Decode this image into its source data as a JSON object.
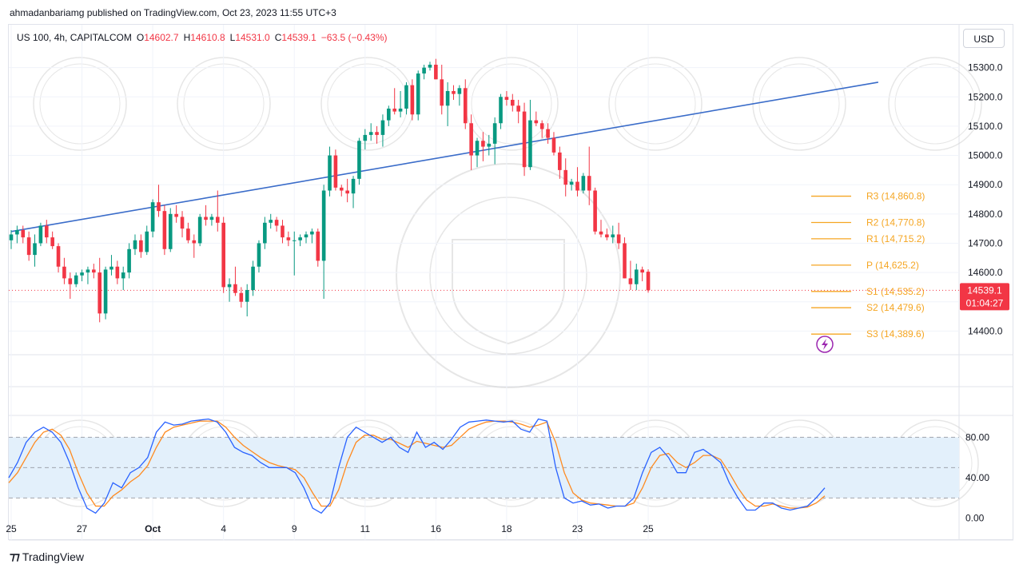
{
  "header": {
    "published_line": "ahmadanbariamg published on TradingView.com, Oct 23, 2023 11:55 UTC+3"
  },
  "legend": {
    "symbol": "US 100, 4h, CAPITALCOM",
    "open_label": "O",
    "open": "14602.7",
    "high_label": "H",
    "high": "14610.8",
    "low_label": "L",
    "low": "14531.0",
    "close_label": "C",
    "close": "14539.1",
    "change": "−63.5 (−0.43%)"
  },
  "currency_button": "USD",
  "brand": "TradingView",
  "colors": {
    "up": "#089981",
    "down": "#f23645",
    "trendline": "#3a6cc9",
    "pivot": "#f5a623",
    "stoch_k": "#2962ff",
    "stoch_d": "#ff8a1f",
    "band_fill": "#e3f0fb",
    "watermark": "#d3d3d3"
  },
  "chart_data": [
    {
      "type": "candlestick",
      "ylim": [
        14330,
        15340
      ],
      "y_ticks": [
        14400,
        14500,
        14600,
        14700,
        14800,
        14900,
        15000,
        15100,
        15200,
        15300
      ],
      "y_tick_labels": [
        "14400.0",
        "14500.0",
        "14600.0",
        "14700.0",
        "14800.0",
        "14900.0",
        "15000.0",
        "15100.0",
        "15200.0",
        "15300.0"
      ],
      "x_ticks": [
        0,
        12,
        24,
        36,
        48,
        60,
        72,
        84,
        96,
        108
      ],
      "x_tick_labels": [
        "25",
        "27",
        "Oct",
        "4",
        "9",
        "11",
        "16",
        "18",
        "23",
        "25"
      ],
      "candles": [
        [
          14710,
          14745,
          14680,
          14730
        ],
        [
          14730,
          14760,
          14700,
          14745
        ],
        [
          14745,
          14760,
          14700,
          14720
        ],
        [
          14720,
          14740,
          14640,
          14660
        ],
        [
          14660,
          14730,
          14620,
          14700
        ],
        [
          14700,
          14770,
          14690,
          14760
        ],
        [
          14760,
          14780,
          14700,
          14720
        ],
        [
          14720,
          14740,
          14680,
          14690
        ],
        [
          14690,
          14700,
          14600,
          14620
        ],
        [
          14620,
          14650,
          14560,
          14580
        ],
        [
          14580,
          14600,
          14510,
          14560
        ],
        [
          14560,
          14600,
          14550,
          14590
        ],
        [
          14590,
          14610,
          14570,
          14600
        ],
        [
          14600,
          14620,
          14560,
          14610
        ],
        [
          14610,
          14630,
          14580,
          14600
        ],
        [
          14600,
          14650,
          14430,
          14460
        ],
        [
          14460,
          14620,
          14440,
          14610
        ],
        [
          14610,
          14660,
          14590,
          14620
        ],
        [
          14620,
          14640,
          14560,
          14580
        ],
        [
          14580,
          14620,
          14540,
          14600
        ],
        [
          14600,
          14700,
          14580,
          14680
        ],
        [
          14680,
          14730,
          14660,
          14710
        ],
        [
          14710,
          14730,
          14650,
          14670
        ],
        [
          14670,
          14760,
          14660,
          14740
        ],
        [
          14740,
          14850,
          14720,
          14840
        ],
        [
          14840,
          14900,
          14790,
          14810
        ],
        [
          14810,
          14830,
          14660,
          14680
        ],
        [
          14680,
          14820,
          14670,
          14800
        ],
        [
          14800,
          14830,
          14770,
          14790
        ],
        [
          14790,
          14810,
          14720,
          14750
        ],
        [
          14750,
          14770,
          14700,
          14710
        ],
        [
          14710,
          14730,
          14650,
          14700
        ],
        [
          14700,
          14800,
          14690,
          14790
        ],
        [
          14790,
          14830,
          14760,
          14780
        ],
        [
          14780,
          14800,
          14760,
          14790
        ],
        [
          14790,
          14880,
          14740,
          14770
        ],
        [
          14770,
          14790,
          14530,
          14550
        ],
        [
          14550,
          14580,
          14500,
          14560
        ],
        [
          14560,
          14620,
          14520,
          14530
        ],
        [
          14530,
          14550,
          14480,
          14500
        ],
        [
          14500,
          14560,
          14450,
          14540
        ],
        [
          14540,
          14640,
          14520,
          14620
        ],
        [
          14620,
          14710,
          14600,
          14700
        ],
        [
          14700,
          14790,
          14680,
          14770
        ],
        [
          14770,
          14800,
          14750,
          14780
        ],
        [
          14780,
          14790,
          14740,
          14760
        ],
        [
          14760,
          14780,
          14700,
          14720
        ],
        [
          14720,
          14740,
          14690,
          14710
        ],
        [
          14710,
          14740,
          14590,
          14710
        ],
        [
          14710,
          14730,
          14690,
          14720
        ],
        [
          14720,
          14740,
          14700,
          14730
        ],
        [
          14730,
          14750,
          14700,
          14740
        ],
        [
          14740,
          14750,
          14620,
          14640
        ],
        [
          14640,
          14900,
          14510,
          14880
        ],
        [
          14880,
          15030,
          14860,
          15000
        ],
        [
          15000,
          15020,
          14880,
          14890
        ],
        [
          14890,
          14900,
          14860,
          14880
        ],
        [
          14880,
          14920,
          14840,
          14870
        ],
        [
          14870,
          14930,
          14820,
          14920
        ],
        [
          14920,
          15060,
          14900,
          15050
        ],
        [
          15050,
          15090,
          15020,
          15070
        ],
        [
          15070,
          15110,
          15050,
          15080
        ],
        [
          15080,
          15100,
          15040,
          15070
        ],
        [
          15070,
          15140,
          15030,
          15120
        ],
        [
          15120,
          15170,
          15100,
          15160
        ],
        [
          15160,
          15230,
          15140,
          15150
        ],
        [
          15150,
          15220,
          15130,
          15160
        ],
        [
          15160,
          15250,
          15140,
          15240
        ],
        [
          15240,
          15260,
          15120,
          15140
        ],
        [
          15140,
          15290,
          15120,
          15280
        ],
        [
          15280,
          15310,
          15260,
          15300
        ],
        [
          15300,
          15320,
          15290,
          15310
        ],
        [
          15310,
          15330,
          15260,
          15260
        ],
        [
          15260,
          15310,
          15140,
          15170
        ],
        [
          15170,
          15250,
          15100,
          15220
        ],
        [
          15220,
          15240,
          15190,
          15210
        ],
        [
          15210,
          15240,
          15170,
          15230
        ],
        [
          15230,
          15260,
          15090,
          15110
        ],
        [
          15110,
          15140,
          14950,
          15000
        ],
        [
          15000,
          15060,
          14960,
          15050
        ],
        [
          15050,
          15080,
          14980,
          15030
        ],
        [
          15030,
          15070,
          15000,
          15040
        ],
        [
          15040,
          15130,
          14970,
          15110
        ],
        [
          15110,
          15210,
          15090,
          15200
        ],
        [
          15200,
          15220,
          15170,
          15190
        ],
        [
          15190,
          15210,
          15150,
          15170
        ],
        [
          15170,
          15190,
          15110,
          15150
        ],
        [
          15150,
          15180,
          14930,
          14960
        ],
        [
          14960,
          15190,
          14950,
          15120
        ],
        [
          15120,
          15150,
          15100,
          15110
        ],
        [
          15110,
          15120,
          15060,
          15090
        ],
        [
          15090,
          15110,
          15040,
          15060
        ],
        [
          15060,
          15080,
          15000,
          15010
        ],
        [
          15010,
          15030,
          14920,
          14950
        ],
        [
          14950,
          14990,
          14860,
          14900
        ],
        [
          14900,
          14920,
          14880,
          14910
        ],
        [
          14910,
          14960,
          14860,
          14880
        ],
        [
          14880,
          14940,
          14870,
          14930
        ],
        [
          14930,
          15030,
          14830,
          14880
        ],
        [
          14880,
          14890,
          14730,
          14740
        ],
        [
          14740,
          14780,
          14720,
          14730
        ],
        [
          14730,
          14750,
          14710,
          14720
        ],
        [
          14720,
          14760,
          14700,
          14730
        ],
        [
          14730,
          14770,
          14680,
          14700
        ],
        [
          14700,
          14720,
          14580,
          14580
        ],
        [
          14580,
          14640,
          14540,
          14560
        ],
        [
          14560,
          14630,
          14540,
          14610
        ],
        [
          14610,
          14620,
          14570,
          14600
        ],
        [
          14602.7,
          14610.8,
          14531.0,
          14539.1
        ]
      ],
      "trendline": {
        "start": [
          0,
          14740
        ],
        "end": [
          147,
          15250
        ]
      },
      "pivots": [
        {
          "label": "R3 (14,860.8)",
          "value": 14860.8
        },
        {
          "label": "R2 (14,770.8)",
          "value": 14770.8
        },
        {
          "label": "R1 (14,715.2)",
          "value": 14715.2
        },
        {
          "label": "P (14,625.2)",
          "value": 14625.2
        },
        {
          "label": "S1 (14,535.2)",
          "value": 14535.2
        },
        {
          "label": "S2 (14,479.6)",
          "value": 14479.6
        },
        {
          "label": "S3 (14,389.6)",
          "value": 14389.6
        }
      ],
      "last_price": "14539.1",
      "countdown": "01:04:27"
    },
    {
      "type": "line",
      "ylim": [
        -5,
        100
      ],
      "band": [
        20,
        80
      ],
      "y_ticks": [
        0,
        40,
        80
      ],
      "y_tick_labels": [
        "0.00",
        "40.00",
        "80.00"
      ],
      "series": [
        {
          "values": [
            40,
            55,
            75,
            85,
            90,
            85,
            75,
            55,
            30,
            10,
            5,
            15,
            35,
            30,
            45,
            50,
            60,
            85,
            95,
            92,
            93,
            96,
            97,
            98,
            95,
            85,
            70,
            65,
            62,
            55,
            50,
            50,
            50,
            45,
            30,
            10,
            5,
            15,
            50,
            80,
            90,
            85,
            80,
            75,
            80,
            70,
            65,
            85,
            70,
            75,
            68,
            78,
            90,
            95,
            96,
            97,
            96,
            95,
            96,
            88,
            85,
            98,
            96,
            50,
            20,
            15,
            17,
            13,
            14,
            10,
            12,
            12,
            20,
            45,
            65,
            70,
            60,
            45,
            45,
            65,
            68,
            62,
            55,
            35,
            20,
            8,
            8,
            15,
            15,
            10,
            8,
            10,
            12,
            20,
            30
          ]
        },
        {
          "values": [
            35,
            45,
            60,
            75,
            85,
            88,
            82,
            68,
            45,
            25,
            12,
            12,
            22,
            28,
            36,
            42,
            52,
            70,
            85,
            90,
            92,
            94,
            96,
            96,
            96,
            90,
            80,
            72,
            66,
            60,
            55,
            52,
            50,
            48,
            40,
            25,
            12,
            12,
            28,
            55,
            75,
            82,
            82,
            78,
            78,
            74,
            70,
            76,
            74,
            72,
            70,
            72,
            80,
            88,
            92,
            95,
            96,
            96,
            95,
            93,
            90,
            92,
            95,
            75,
            45,
            25,
            18,
            15,
            14,
            13,
            12,
            12,
            15,
            30,
            50,
            62,
            64,
            55,
            50,
            55,
            62,
            62,
            58,
            45,
            30,
            18,
            12,
            12,
            14,
            12,
            10,
            10,
            11,
            15,
            22
          ]
        }
      ]
    }
  ]
}
